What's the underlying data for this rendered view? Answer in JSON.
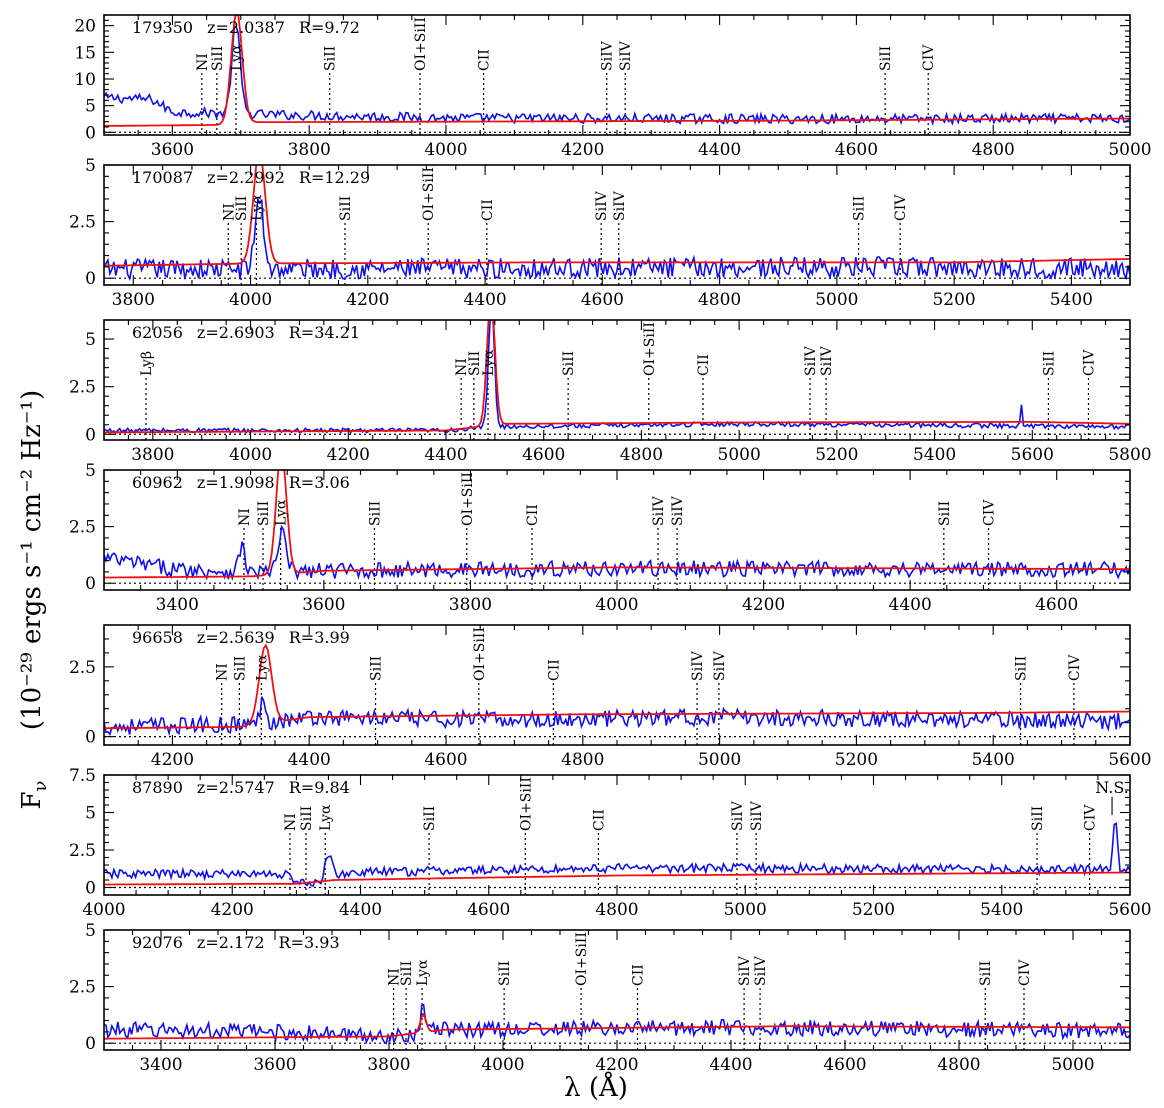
{
  "figure": {
    "xlabel": "λ (Å)",
    "ylabel_prefix": "F",
    "ylabel_sub": "ν",
    "ylabel_units": "(10⁻²⁹ ergs s⁻¹ cm⁻² Hz⁻¹)"
  },
  "colors": {
    "observed": "#1010ee",
    "model": "#ee1010"
  },
  "chart_data": [
    {
      "type": "line",
      "info": {
        "id": "179350",
        "z": "z=2.0387",
        "r": "R=9.72"
      },
      "xlim": [
        3500,
        5000
      ],
      "ylim": [
        -0.5,
        22
      ],
      "xticks": [
        3600,
        3800,
        4000,
        4200,
        4400,
        4600,
        4800,
        5000
      ],
      "yticks": [
        0,
        5,
        10,
        15,
        20
      ],
      "ytick_labels": [
        "0",
        "5",
        "10",
        "15",
        "20"
      ],
      "lines": [
        {
          "label": "NI",
          "x": 3643
        },
        {
          "label": "SiII",
          "x": 3665
        },
        {
          "label": "Lyα",
          "x": 3693
        },
        {
          "label": "SiII",
          "x": 3830
        },
        {
          "label": "OI+SiII",
          "x": 3962
        },
        {
          "label": "CII",
          "x": 4055
        },
        {
          "label": "SiIV",
          "x": 4235
        },
        {
          "label": "SiIV",
          "x": 4262
        },
        {
          "label": "SiII",
          "x": 4642
        },
        {
          "label": "CIV",
          "x": 4705
        }
      ],
      "observed": {
        "continuum": [
          [
            3500,
            6.5
          ],
          [
            3570,
            6.2
          ],
          [
            3600,
            3.8
          ],
          [
            3750,
            3.3
          ],
          [
            4000,
            2.7
          ],
          [
            4500,
            2.5
          ],
          [
            5000,
            2.6
          ]
        ],
        "noise": 0.9,
        "features": [
          {
            "x": 3693,
            "amp": 17,
            "w": 6
          }
        ]
      },
      "model": {
        "continuum": [
          [
            3500,
            1.2
          ],
          [
            3680,
            1.4
          ],
          [
            3700,
            1.9
          ],
          [
            4000,
            2.0
          ],
          [
            4500,
            2.2
          ],
          [
            5000,
            2.6
          ]
        ],
        "features": [
          {
            "x": 3694,
            "amp": 21,
            "w": 8
          }
        ]
      }
    },
    {
      "type": "line",
      "info": {
        "id": "170087",
        "z": "z=2.2992",
        "r": "R=12.29"
      },
      "xlim": [
        3750,
        5500
      ],
      "ylim": [
        -0.3,
        5
      ],
      "xticks": [
        3800,
        4000,
        4200,
        4400,
        4600,
        4800,
        5000,
        5200,
        5400
      ],
      "yticks": [
        0,
        2.5,
        5
      ],
      "ytick_labels": [
        "0",
        "2.5",
        "5"
      ],
      "lines": [
        {
          "label": "NI",
          "x": 3962
        },
        {
          "label": "SiII",
          "x": 3984
        },
        {
          "label": "Lyα",
          "x": 4010
        },
        {
          "label": "SiII",
          "x": 4161
        },
        {
          "label": "OI+SiII",
          "x": 4303
        },
        {
          "label": "CII",
          "x": 4403
        },
        {
          "label": "SiIV",
          "x": 4598
        },
        {
          "label": "SiIV",
          "x": 4628
        },
        {
          "label": "SiII",
          "x": 5037
        },
        {
          "label": "CIV",
          "x": 5108
        }
      ],
      "observed": {
        "continuum": [
          [
            3750,
            0.4
          ],
          [
            4000,
            0.4
          ],
          [
            4500,
            0.45
          ],
          [
            5000,
            0.5
          ],
          [
            5500,
            0.45
          ]
        ],
        "noise": 0.45,
        "features": [
          {
            "x": 4015,
            "amp": 3.2,
            "w": 7
          }
        ]
      },
      "model": {
        "continuum": [
          [
            3750,
            0.55
          ],
          [
            4000,
            0.65
          ],
          [
            4500,
            0.7
          ],
          [
            5200,
            0.7
          ],
          [
            5500,
            0.85
          ]
        ],
        "features": [
          {
            "x": 4015,
            "amp": 5.0,
            "w": 10
          }
        ]
      }
    },
    {
      "type": "line",
      "info": {
        "id": "62056",
        "z": "z=2.6903",
        "r": "R=34.21"
      },
      "xlim": [
        3700,
        5800
      ],
      "ylim": [
        -0.3,
        6
      ],
      "xticks": [
        3800,
        4000,
        4200,
        4400,
        4600,
        4800,
        5000,
        5200,
        5400,
        5600,
        5800
      ],
      "yticks": [
        0,
        2.5,
        5
      ],
      "ytick_labels": [
        "0",
        "2.5",
        "5"
      ],
      "lines": [
        {
          "label": "Lyβ",
          "x": 3786
        },
        {
          "label": "NI",
          "x": 4431
        },
        {
          "label": "SiII",
          "x": 4457
        },
        {
          "label": "Lyα",
          "x": 4486
        },
        {
          "label": "SiII",
          "x": 4650
        },
        {
          "label": "OI+SiII",
          "x": 4815
        },
        {
          "label": "CII",
          "x": 4926
        },
        {
          "label": "SiIV",
          "x": 5145
        },
        {
          "label": "SiIV",
          "x": 5178
        },
        {
          "label": "SiII",
          "x": 5633
        },
        {
          "label": "CIV",
          "x": 5715
        }
      ],
      "observed": {
        "continuum": [
          [
            3700,
            0.2
          ],
          [
            4400,
            0.2
          ],
          [
            4500,
            0.4
          ],
          [
            5000,
            0.55
          ],
          [
            5800,
            0.4
          ]
        ],
        "noise": 0.12,
        "features": [
          {
            "x": 4493,
            "amp": 6.5,
            "w": 6
          },
          {
            "x": 5577,
            "amp": 1.2,
            "w": 1.5
          }
        ]
      },
      "model": {
        "continuum": [
          [
            3700,
            0.1
          ],
          [
            4400,
            0.2
          ],
          [
            4520,
            0.55
          ],
          [
            5000,
            0.62
          ],
          [
            5600,
            0.65
          ],
          [
            5800,
            0.55
          ]
        ],
        "features": [
          {
            "x": 4492,
            "amp": 6.8,
            "w": 8
          }
        ]
      }
    },
    {
      "type": "line",
      "info": {
        "id": "60962",
        "z": "z=1.9098",
        "r": "R=3.06"
      },
      "xlim": [
        3300,
        4700
      ],
      "ylim": [
        -0.3,
        5
      ],
      "xticks": [
        3400,
        3600,
        3800,
        4000,
        4200,
        4400,
        4600
      ],
      "yticks": [
        0,
        2.5,
        5
      ],
      "ytick_labels": [
        "0",
        "2.5",
        "5"
      ],
      "lines": [
        {
          "label": "NI",
          "x": 3491
        },
        {
          "label": "SiII",
          "x": 3517
        },
        {
          "label": "Lyα",
          "x": 3541
        },
        {
          "label": "SiII",
          "x": 3669
        },
        {
          "label": "OI+SiII",
          "x": 3795
        },
        {
          "label": "CII",
          "x": 3884
        },
        {
          "label": "SiIV",
          "x": 4056
        },
        {
          "label": "SiIV",
          "x": 4082
        },
        {
          "label": "SiII",
          "x": 4446
        },
        {
          "label": "CIV",
          "x": 4507
        }
      ],
      "observed": {
        "continuum": [
          [
            3300,
            1.1
          ],
          [
            3400,
            0.6
          ],
          [
            3500,
            0.5
          ],
          [
            3600,
            0.55
          ],
          [
            4000,
            0.65
          ],
          [
            4700,
            0.6
          ]
        ],
        "noise": 0.35,
        "features": [
          {
            "x": 3488,
            "amp": 1.1,
            "w": 4
          },
          {
            "x": 3543,
            "amp": 1.8,
            "w": 5
          }
        ]
      },
      "model": {
        "continuum": [
          [
            3300,
            0.25
          ],
          [
            3500,
            0.3
          ],
          [
            3600,
            0.55
          ],
          [
            4000,
            0.7
          ],
          [
            4700,
            0.62
          ]
        ],
        "features": [
          {
            "x": 3542,
            "amp": 5.5,
            "w": 7
          }
        ]
      }
    },
    {
      "type": "line",
      "info": {
        "id": "96658",
        "z": "z=2.5639",
        "r": "R=3.99"
      },
      "xlim": [
        4100,
        5600
      ],
      "ylim": [
        -0.3,
        4
      ],
      "xticks": [
        4200,
        4400,
        4600,
        4800,
        5000,
        5200,
        5400,
        5600
      ],
      "yticks": [
        0,
        2.5
      ],
      "ytick_labels": [
        "0",
        "2.5"
      ],
      "lines": [
        {
          "label": "NI",
          "x": 4272
        },
        {
          "label": "SiII",
          "x": 4298
        },
        {
          "label": "Lyα",
          "x": 4330
        },
        {
          "label": "SiII",
          "x": 4497
        },
        {
          "label": "OI+SiII",
          "x": 4648
        },
        {
          "label": "CII",
          "x": 4757
        },
        {
          "label": "SiIV",
          "x": 4967
        },
        {
          "label": "SiIV",
          "x": 4999
        },
        {
          "label": "SiII",
          "x": 5440
        },
        {
          "label": "CIV",
          "x": 5518
        }
      ],
      "observed": {
        "continuum": [
          [
            4100,
            0.35
          ],
          [
            4320,
            0.45
          ],
          [
            4400,
            0.7
          ],
          [
            4700,
            0.6
          ],
          [
            5000,
            0.7
          ],
          [
            5600,
            0.55
          ]
        ],
        "noise": 0.3,
        "features": [
          {
            "x": 4333,
            "amp": 1.0,
            "w": 4
          }
        ]
      },
      "model": {
        "continuum": [
          [
            4100,
            0.3
          ],
          [
            4300,
            0.35
          ],
          [
            4400,
            0.7
          ],
          [
            4800,
            0.8
          ],
          [
            5400,
            0.85
          ],
          [
            5600,
            0.9
          ]
        ],
        "features": [
          {
            "x": 4336,
            "amp": 2.8,
            "w": 9
          }
        ]
      }
    },
    {
      "type": "line",
      "info": {
        "id": "87890",
        "z": "z=2.5747",
        "r": "R=9.84"
      },
      "xlim": [
        4000,
        5600
      ],
      "ylim": [
        -0.5,
        7.5
      ],
      "xticks": [
        4000,
        4200,
        4400,
        4600,
        4800,
        5000,
        5200,
        5400,
        5600
      ],
      "yticks": [
        0,
        2.5,
        5,
        7.5
      ],
      "ytick_labels": [
        "0",
        "2.5",
        "5",
        "7.5"
      ],
      "annotations": [
        {
          "label": "N.S.",
          "x": 5572
        }
      ],
      "lines": [
        {
          "label": "NI",
          "x": 4290
        },
        {
          "label": "SiII",
          "x": 4315
        },
        {
          "label": "Lyα",
          "x": 4345
        },
        {
          "label": "SiII",
          "x": 4507
        },
        {
          "label": "OI+SiII",
          "x": 4657
        },
        {
          "label": "CII",
          "x": 4771
        },
        {
          "label": "SiIV",
          "x": 4987
        },
        {
          "label": "SiIV",
          "x": 5017
        },
        {
          "label": "SiII",
          "x": 5455
        },
        {
          "label": "CIV",
          "x": 5537
        }
      ],
      "observed": {
        "continuum": [
          [
            4000,
            0.9
          ],
          [
            4280,
            0.9
          ],
          [
            4320,
            0.1
          ],
          [
            4380,
            1.0
          ],
          [
            4800,
            1.3
          ],
          [
            5600,
            1.2
          ]
        ],
        "noise": 0.3,
        "features": [
          {
            "x": 4350,
            "amp": 1.8,
            "w": 5
          },
          {
            "x": 5577,
            "amp": 3.3,
            "w": 3
          }
        ]
      },
      "model": {
        "continuum": [
          [
            4000,
            0.2
          ],
          [
            4300,
            0.25
          ],
          [
            4360,
            0.5
          ],
          [
            4800,
            0.8
          ],
          [
            5600,
            1.0
          ]
        ],
        "features": []
      }
    },
    {
      "type": "line",
      "info": {
        "id": "92076",
        "z": "z=2.172",
        "r": "R=3.93"
      },
      "xlim": [
        3300,
        5100
      ],
      "ylim": [
        -0.3,
        5
      ],
      "xticks": [
        3400,
        3600,
        3800,
        4000,
        4200,
        4400,
        4600,
        4800,
        5000
      ],
      "yticks": [
        0,
        2.5,
        5
      ],
      "ytick_labels": [
        "0",
        "2.5",
        "5"
      ],
      "lines": [
        {
          "label": "NI",
          "x": 3808
        },
        {
          "label": "SiII",
          "x": 3830
        },
        {
          "label": "Lyα",
          "x": 3858
        },
        {
          "label": "SiII",
          "x": 4002
        },
        {
          "label": "OI+SiII",
          "x": 4137
        },
        {
          "label": "CII",
          "x": 4236
        },
        {
          "label": "SiIV",
          "x": 4423
        },
        {
          "label": "SiIV",
          "x": 4451
        },
        {
          "label": "SiII",
          "x": 4846
        },
        {
          "label": "CIV",
          "x": 4914
        }
      ],
      "observed": {
        "continuum": [
          [
            3300,
            0.6
          ],
          [
            3600,
            0.5
          ],
          [
            3800,
            0.3
          ],
          [
            3900,
            0.6
          ],
          [
            4400,
            0.7
          ],
          [
            5100,
            0.55
          ]
        ],
        "noise": 0.35,
        "features": [
          {
            "x": 3860,
            "amp": 1.4,
            "w": 4
          }
        ]
      },
      "model": {
        "continuum": [
          [
            3300,
            0.2
          ],
          [
            3800,
            0.3
          ],
          [
            3900,
            0.6
          ],
          [
            4500,
            0.75
          ],
          [
            5100,
            0.7
          ]
        ],
        "features": [
          {
            "x": 3860,
            "amp": 0.8,
            "w": 5
          }
        ]
      }
    }
  ]
}
